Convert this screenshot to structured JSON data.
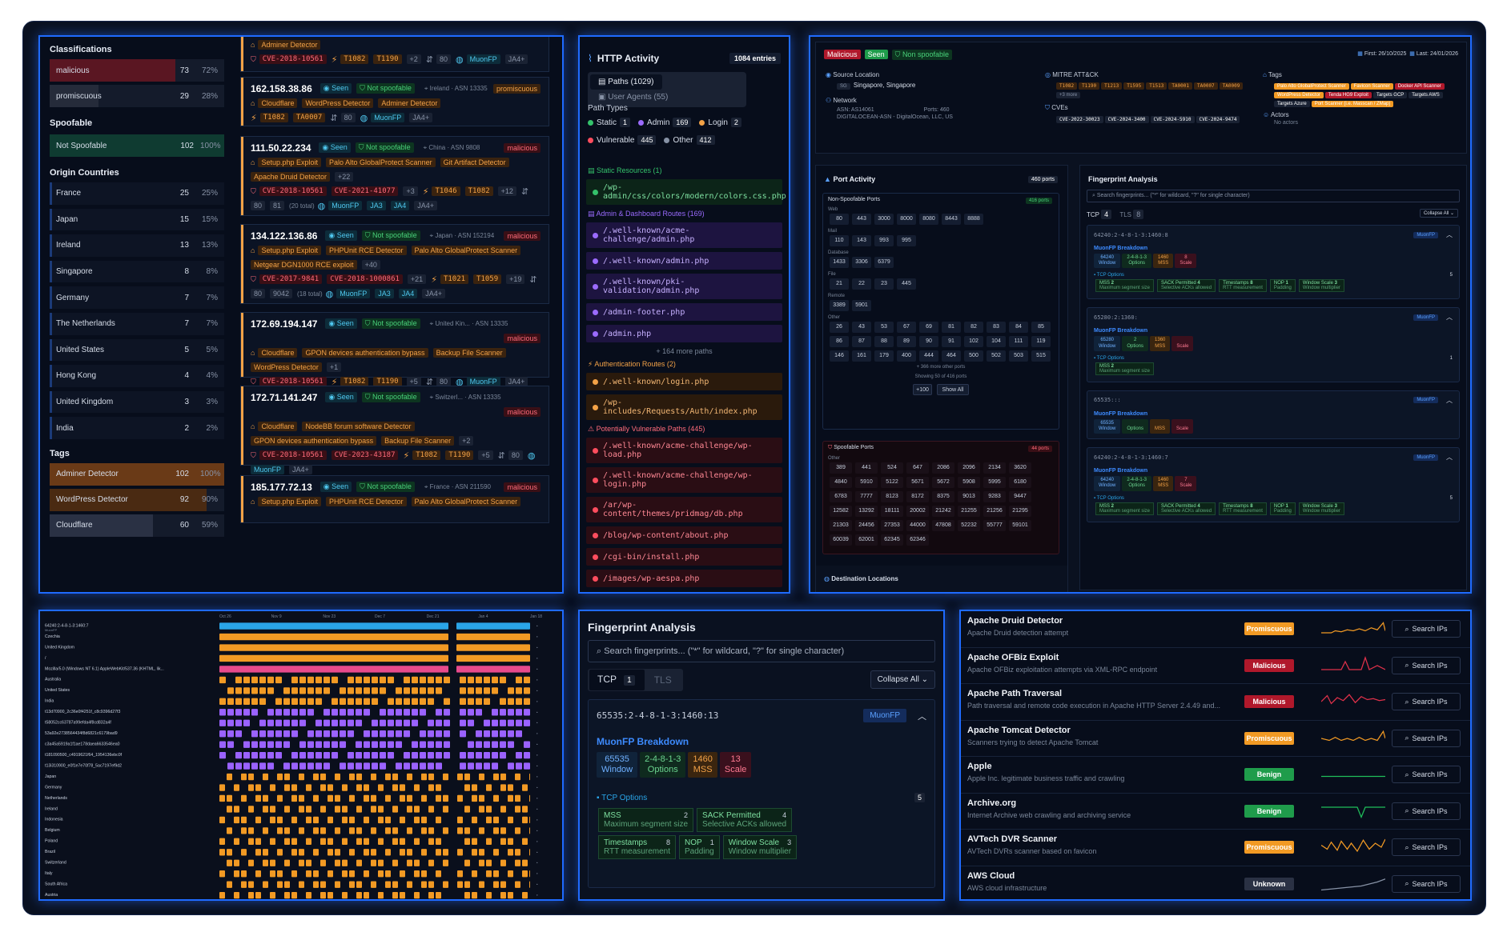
{
  "left": {
    "classifications_title": "Classifications",
    "classifications": [
      {
        "label": "malicious",
        "count": "73",
        "pct": "72%",
        "frac": 0.72
      },
      {
        "label": "promiscuous",
        "count": "29",
        "pct": "28%",
        "frac": 0.28
      }
    ],
    "spoofable_title": "Spoofable",
    "spoofable": {
      "label": "Not Spoofable",
      "count": "102",
      "pct": "100%"
    },
    "countries_title": "Origin Countries",
    "countries": [
      {
        "name": "France",
        "count": "25",
        "pct": "25%"
      },
      {
        "name": "Japan",
        "count": "15",
        "pct": "15%"
      },
      {
        "name": "Ireland",
        "count": "13",
        "pct": "13%"
      },
      {
        "name": "Singapore",
        "count": "8",
        "pct": "8%"
      },
      {
        "name": "Germany",
        "count": "7",
        "pct": "7%"
      },
      {
        "name": "The Netherlands",
        "count": "7",
        "pct": "7%"
      },
      {
        "name": "United States",
        "count": "5",
        "pct": "5%"
      },
      {
        "name": "Hong Kong",
        "count": "4",
        "pct": "4%"
      },
      {
        "name": "United Kingdom",
        "count": "3",
        "pct": "3%"
      },
      {
        "name": "India",
        "count": "2",
        "pct": "2%"
      }
    ],
    "tags_title": "Tags",
    "tags": [
      {
        "label": "Adminer Detector",
        "count": "102",
        "pct": "100%",
        "frac": 1.0
      },
      {
        "label": "WordPress Detector",
        "count": "92",
        "pct": "90%",
        "frac": 0.9
      },
      {
        "label": "Cloudflare",
        "count": "60",
        "pct": "59%",
        "frac": 0.59
      }
    ]
  },
  "cards": [
    {
      "ip": "",
      "loc": "",
      "cls": "",
      "tags": [
        "Adminer Detector"
      ],
      "cves": [
        "CVE-2018-10561"
      ],
      "mitre": [
        "T1082",
        "T1190"
      ],
      "mitre_more": "+2",
      "ports": "80",
      "fp": "MuonFP",
      "ja": "JA4+"
    },
    {
      "ip": "162.158.38.86",
      "seen": "Seen",
      "spoof": "Not spoofable",
      "loc": "Ireland · ASN 13335",
      "cls": "promiscuous",
      "tags": [
        "Cloudflare",
        "WordPress Detector",
        "Adminer Detector"
      ],
      "mitre": [
        "T1082",
        "TA0007"
      ],
      "ports": "80",
      "fp": "MuonFP",
      "ja": "JA4+"
    },
    {
      "ip": "111.50.22.234",
      "seen": "Seen",
      "spoof": "Not spoofable",
      "loc": "China · ASN 9808",
      "cls": "malicious",
      "tags": [
        "Setup.php Exploit",
        "Palo Alto GlobalProtect Scanner",
        "Git Artifact Detector",
        "Apache Druid Detector"
      ],
      "tag_more": "+22",
      "cves": [
        "CVE-2018-10561",
        "CVE-2021-41077"
      ],
      "cve_more": "+3",
      "mitre": [
        "T1046",
        "T1082"
      ],
      "mitre_more": "+12",
      "ports": "80",
      "ports2": "81",
      "ports_total": "(20 total)",
      "fp": "MuonFP",
      "ja": "JA3",
      "ja2": "JA4",
      "ja3": "JA4+"
    },
    {
      "ip": "134.122.136.86",
      "seen": "Seen",
      "spoof": "Not spoofable",
      "loc": "Japan · ASN 152194",
      "cls": "malicious",
      "tags": [
        "Setup.php Exploit",
        "PHPUnit RCE Detector",
        "Palo Alto GlobalProtect Scanner",
        "Netgear DGN1000 RCE exploit"
      ],
      "tag_more": "+40",
      "cves": [
        "CVE-2017-9841",
        "CVE-2018-1000861"
      ],
      "cve_more": "+21",
      "mitre": [
        "T1021",
        "T1059"
      ],
      "mitre_more": "+19",
      "ports": "80",
      "ports2": "9042",
      "ports_total": "(18 total)",
      "fp": "MuonFP",
      "ja": "JA3",
      "ja2": "JA4",
      "ja3": "JA4+"
    },
    {
      "ip": "172.69.194.147",
      "seen": "Seen",
      "spoof": "Not spoofable",
      "loc": "United Kin... · ASN 13335",
      "cls": "malicious",
      "tags": [
        "Cloudflare",
        "GPON devices authentication bypass",
        "Backup File Scanner",
        "WordPress Detector"
      ],
      "tag_more": "+1",
      "cves": [
        "CVE-2018-10561"
      ],
      "mitre": [
        "T1082",
        "T1190"
      ],
      "mitre_more": "+5",
      "ports": "80",
      "fp": "MuonFP",
      "ja": "JA4+"
    },
    {
      "ip": "172.71.141.247",
      "seen": "Seen",
      "spoof": "Not spoofable",
      "loc": "Switzerl... · ASN 13335",
      "cls": "malicious",
      "tags": [
        "Cloudflare",
        "NodeBB forum software Detector",
        "GPON devices authentication bypass",
        "Backup File Scanner"
      ],
      "tag_more": "+2",
      "cves": [
        "CVE-2018-10561",
        "CVE-2023-43187"
      ],
      "mitre": [
        "T1082",
        "T1190"
      ],
      "mitre_more": "+5",
      "ports": "80",
      "fp": "MuonFP",
      "ja": "JA4+"
    },
    {
      "ip": "185.177.72.13",
      "seen": "Seen",
      "spoof": "Not spoofable",
      "loc": "France · ASN 211590",
      "cls": "malicious",
      "tags": [
        "Setup.php Exploit",
        "PHPUnit RCE Detector",
        "Palo Alto GlobalProtect Scanner"
      ]
    }
  ],
  "http": {
    "title": "HTTP Activity",
    "entries": "1084 entries",
    "tab1": "Paths (1029)",
    "tab2": "User Agents (55)",
    "types_title": "Path Types",
    "types": [
      {
        "label": "Static",
        "count": "1",
        "color": "#34c26b"
      },
      {
        "label": "Admin",
        "count": "169",
        "color": "#9b6bff"
      },
      {
        "label": "Login",
        "count": "2",
        "color": "#f3a247"
      },
      {
        "label": "Vulnerable",
        "count": "445",
        "color": "#ff4d5e"
      },
      {
        "label": "Other",
        "count": "412",
        "color": "#8792a6"
      }
    ],
    "static_title": "Static Resources (1)",
    "static": [
      "/wp-admin/css/colors/modern/colors.css.php"
    ],
    "admin_title": "Admin & Dashboard Routes (169)",
    "admin": [
      "/.well-known/acme-challenge/admin.php",
      "/.well-known/admin.php",
      "/.well-known/pki-validation/admin.php",
      "/admin-footer.php",
      "/admin.php"
    ],
    "admin_more": "+ 164 more paths",
    "auth_title": "Authentication Routes (2)",
    "auth": [
      "/.well-known/login.php",
      "/wp-includes/Requests/Auth/index.php"
    ],
    "vuln_title": "Potentially Vulnerable Paths (445)",
    "vuln": [
      "/.well-known/acme-challenge/wp-load.php",
      "/.well-known/acme-challenge/wp-login.php",
      "/ar/wp-content/themes/pridmag/db.php",
      "/blog/wp-content/about.php",
      "/cgi-bin/install.php",
      "/images/wp-aespa.php"
    ]
  },
  "detail": {
    "badges": [
      "Malicious",
      "Seen",
      "Non spoofable"
    ],
    "first": "First: 26/10/2025",
    "last": "Last: 24/01/2026",
    "src_title": "Source Location",
    "src_val": "Singapore, Singapore",
    "src_code": "SG",
    "net_title": "Network",
    "asn": "ASN: AS14061",
    "ports": "Ports: 460",
    "net_org": "DIGITALOCEAN-ASN - DigitalOcean, LLC, US",
    "mitre_title": "MITRE ATT&CK",
    "mitre": [
      "T1082",
      "T1190",
      "T1213",
      "T1595",
      "T1513",
      "TA0001",
      "TA0007",
      "TA0009"
    ],
    "mitre_more": "+3 more",
    "cve_title": "CVEs",
    "cves": [
      "CVE-2022-30023",
      "CVE-2024-3400",
      "CVE-2024-5910",
      "CVE-2024-9474"
    ],
    "tags_title": "Tags",
    "tags": [
      {
        "t": "Palo Alto GlobalProtect Scanner",
        "c": "or"
      },
      {
        "t": "Favicon Scanner",
        "c": "or"
      },
      {
        "t": "Docker API Scanner",
        "c": "red"
      },
      {
        "t": "WordPress Detector",
        "c": "or"
      },
      {
        "t": "Tenda HG9 Exploit",
        "c": "red"
      },
      {
        "t": "Targets GCP",
        "c": "gray"
      },
      {
        "t": "Targets AWS",
        "c": "gray"
      },
      {
        "t": "Targets Azure",
        "c": "gray"
      },
      {
        "t": "Port Scanner (i.e. Masscan / ZMap)",
        "c": "or"
      }
    ],
    "actors_title": "Actors",
    "actors": "No actors"
  },
  "port": {
    "title": "Port Activity",
    "count": "460 ports",
    "ns_title": "Non-Spoofable Ports",
    "ns_count": "416 ports",
    "groups": [
      {
        "name": "Web",
        "ports": [
          "80",
          "443",
          "3000",
          "8000",
          "8080",
          "8443",
          "8888"
        ]
      },
      {
        "name": "Mail",
        "ports": [
          "110",
          "143",
          "993",
          "995"
        ]
      },
      {
        "name": "Database",
        "ports": [
          "1433",
          "3306",
          "6379"
        ]
      },
      {
        "name": "File",
        "ports": [
          "21",
          "22",
          "23",
          "445"
        ]
      },
      {
        "name": "Remote",
        "ports": [
          "3389",
          "5901"
        ]
      },
      {
        "name": "Other",
        "ports": [
          "26",
          "43",
          "53",
          "67",
          "69",
          "81",
          "82",
          "83",
          "84",
          "85",
          "86",
          "87",
          "88",
          "89",
          "90",
          "91",
          "102",
          "104",
          "111",
          "119",
          "146",
          "161",
          "179",
          "400",
          "444",
          "464",
          "500",
          "502",
          "503",
          "515"
        ]
      }
    ],
    "more": "+ 366 more other ports",
    "showing": "Showing 50 of 416 ports",
    "p100": "+100",
    "showall": "Show All",
    "sp_title": "Spoofable Ports",
    "sp_count": "44 ports",
    "sp_group": "Other",
    "sp_ports": [
      "389",
      "441",
      "524",
      "647",
      "2086",
      "2096",
      "2134",
      "3620",
      "4840",
      "5910",
      "5122",
      "5671",
      "5672",
      "5908",
      "5995",
      "6180",
      "6783",
      "7777",
      "8123",
      "8172",
      "8375",
      "9013",
      "9283",
      "9447",
      "12582",
      "13292",
      "18111",
      "20002",
      "21242",
      "21255",
      "21256",
      "21295",
      "21303",
      "24456",
      "27353",
      "44000",
      "47808",
      "52232",
      "55777",
      "59101",
      "60039",
      "62001",
      "62345",
      "62346"
    ],
    "dest": "Destination Locations"
  },
  "fpsmall": {
    "title": "Fingerprint Analysis",
    "search": "Search fingerprints... (\"*\" for wildcard, \"?\" for single character)",
    "tcp": "TCP",
    "tcp_n": "4",
    "tls": "TLS",
    "tls_n": "8",
    "collapse": "Collapse All",
    "items": [
      {
        "hash": "64240:2-4-8-1-3:1460:8",
        "fp": "MuonFP",
        "bd": "MuonFP Breakdown",
        "w": "64240",
        "o": "2-4-8-1-3",
        "m": "1460",
        "s": "8",
        "opts_n": "5",
        "opts": [
          [
            "MSS",
            "Maximum segment size",
            "2"
          ],
          [
            "SACK Permitted",
            "Selective ACKs allowed",
            "4"
          ],
          [
            "Timestamps",
            "RTT measurement",
            "8"
          ],
          [
            "NOP",
            "Padding",
            "1"
          ],
          [
            "Window Scale",
            "Window multiplier",
            "3"
          ]
        ]
      },
      {
        "hash": "65280:2:1360:",
        "fp": "MuonFP",
        "bd": "MuonFP Breakdown",
        "w": "65280",
        "o": "2",
        "m": "1360",
        "s": "",
        "opts_n": "1",
        "opts": [
          [
            "MSS",
            "Maximum segment size",
            "2"
          ]
        ]
      },
      {
        "hash": "65535:::",
        "fp": "MuonFP",
        "bd": "MuonFP Breakdown",
        "w": "65535",
        "o": "",
        "m": "",
        "s": ""
      },
      {
        "hash": "64240:2-4-8-1-3:1460:7",
        "fp": "MuonFP",
        "bd": "MuonFP Breakdown",
        "w": "64240",
        "o": "2-4-8-1-3",
        "m": "1460",
        "s": "7",
        "opts_n": "5",
        "opts": [
          [
            "MSS",
            "Maximum segment size",
            "2"
          ],
          [
            "SACK Permitted",
            "Selective ACKs allowed",
            "4"
          ],
          [
            "Timestamps",
            "RTT measurement",
            "8"
          ],
          [
            "NOP",
            "Padding",
            "1"
          ],
          [
            "Window Scale",
            "Window multiplier",
            "3"
          ]
        ]
      }
    ],
    "labels": {
      "window": "Window",
      "options": "Options",
      "mss": "MSS",
      "scale": "Scale",
      "tcpopt": "TCP Options"
    }
  },
  "fpbig": {
    "title": "Fingerprint Analysis",
    "search": "Search fingerprints... (\"*\" for wildcard, \"?\" for single character)",
    "tcp": "TCP",
    "tcp_n": "1",
    "tls": "TLS",
    "collapse": "Collapse All",
    "hash": "65535:2-4-8-1-3:1460:13",
    "fp": "MuonFP",
    "bd": "MuonFP Breakdown",
    "w": "65535",
    "wl": "Window",
    "o": "2-4-8-1-3",
    "ol": "Options",
    "m": "1460",
    "ml": "MSS",
    "s": "13",
    "sl": "Scale",
    "tcpopt": "TCP Options",
    "opts_n": "5",
    "opts": [
      [
        "MSS",
        "Maximum segment size",
        "2"
      ],
      [
        "SACK Permitted",
        "Selective ACKs allowed",
        "4"
      ],
      [
        "Timestamps",
        "RTT measurement",
        "8"
      ],
      [
        "NOP",
        "Padding",
        "1"
      ],
      [
        "Window Scale",
        "Window multiplier",
        "3"
      ]
    ]
  },
  "signals": [
    {
      "name": "Apache Druid Detector",
      "desc": "Apache Druid detection attempt",
      "badge": "Promiscuous",
      "kind": "prom",
      "btn": "Search IPs"
    },
    {
      "name": "Apache OFBiz Exploit",
      "desc": "Apache OFBiz exploitation attempts via XML-RPC endpoint",
      "badge": "Malicious",
      "kind": "mal",
      "btn": "Search IPs"
    },
    {
      "name": "Apache Path Traversal",
      "desc": "Path traversal and remote code execution in Apache HTTP Server 2.4.49 and...",
      "badge": "Malicious",
      "kind": "mal",
      "btn": "Search IPs"
    },
    {
      "name": "Apache Tomcat Detector",
      "desc": "Scanners trying to detect Apache Tomcat",
      "badge": "Promiscuous",
      "kind": "prom",
      "btn": "Search IPs"
    },
    {
      "name": "Apple",
      "desc": "Apple Inc. legitimate business traffic and crawling",
      "badge": "Benign",
      "kind": "ben",
      "btn": "Search IPs"
    },
    {
      "name": "Archive.org",
      "desc": "Internet Archive web crawling and archiving service",
      "badge": "Benign",
      "kind": "ben",
      "btn": "Search IPs"
    },
    {
      "name": "AVTech DVR Scanner",
      "desc": "AVTech DVRs scanner based on favicon",
      "badge": "Promiscuous",
      "kind": "prom",
      "btn": "Search IPs"
    },
    {
      "name": "AWS Cloud",
      "desc": "AWS cloud infrastructure",
      "badge": "Unknown",
      "kind": "unk",
      "btn": "Search IPs"
    }
  ],
  "timeline": {
    "dates": [
      "Oct 26",
      "Nov 9",
      "Nov 23",
      "Dec 7",
      "Dec 21",
      "Jan 4",
      "Jan 18"
    ],
    "rows": [
      {
        "label": "64240:2-4-8-1-3:1460:7",
        "sub": "MuonFP",
        "kind": "fp",
        "pattern": "solid",
        "color": "#2aa5e8"
      },
      {
        "label": "Czechia",
        "kind": "country",
        "pattern": "solid",
        "color": "#f29a24"
      },
      {
        "label": "United Kingdom",
        "kind": "country",
        "pattern": "solid",
        "color": "#f29a24"
      },
      {
        "label": "/",
        "kind": "path",
        "pattern": "solid",
        "color": "#f29a24"
      },
      {
        "label": "Mozilla/5.0 (Windows NT 6.1) AppleWebKit/537.36 (KHTML, lik...",
        "kind": "ua",
        "pattern": "solid",
        "color": "#e84a8c"
      },
      {
        "label": "Australia",
        "kind": "country",
        "pattern": "dash",
        "color": "#f29a24"
      },
      {
        "label": "United States",
        "kind": "country",
        "pattern": "dash",
        "color": "#f29a24"
      },
      {
        "label": "India",
        "kind": "country",
        "pattern": "dash",
        "color": "#f29a24"
      },
      {
        "label": "t13d70900_2c36e0f4251f_c8c9396d27f3",
        "kind": "hash",
        "pattern": "dash",
        "color": "#9a62ff"
      },
      {
        "label": "t58052cc63787a99efda4f8cd832a4f",
        "kind": "hash",
        "pattern": "dash",
        "color": "#9a62ff"
      },
      {
        "label": "53a92e2738564434f8d6821c6179bad9",
        "kind": "hash",
        "pattern": "dash",
        "color": "#9a62ff"
      },
      {
        "label": "c3a45a5919a1f1ae178daea6633546ea0",
        "kind": "hash",
        "pattern": "dash",
        "color": "#9a62ff"
      },
      {
        "label": "t181090500_c4919621f64_1954136ebc0f",
        "kind": "hash",
        "pattern": "dash",
        "color": "#9a62ff"
      },
      {
        "label": "t13i310900_e0f1e7e70f78_5ac7197ef9d2",
        "kind": "hash",
        "pattern": "dash",
        "color": "#9a62ff"
      },
      {
        "label": "Japan",
        "kind": "country",
        "pattern": "sparse",
        "color": "#f29a24"
      },
      {
        "label": "Germany",
        "kind": "country",
        "pattern": "sparse",
        "color": "#f29a24"
      },
      {
        "label": "Netherlands",
        "kind": "country",
        "pattern": "sparse",
        "color": "#f29a24"
      },
      {
        "label": "Ireland",
        "kind": "country",
        "pattern": "sparse",
        "color": "#f29a24"
      },
      {
        "label": "Indonesia",
        "kind": "country",
        "pattern": "sparse",
        "color": "#f29a24"
      },
      {
        "label": "Belgium",
        "kind": "country",
        "pattern": "sparse",
        "color": "#f29a24"
      },
      {
        "label": "Poland",
        "kind": "country",
        "pattern": "sparse",
        "color": "#f29a24"
      },
      {
        "label": "Brazil",
        "kind": "country",
        "pattern": "sparse",
        "color": "#f29a24"
      },
      {
        "label": "Switzerland",
        "kind": "country",
        "pattern": "sparse",
        "color": "#f29a24"
      },
      {
        "label": "Italy",
        "kind": "country",
        "pattern": "sparse",
        "color": "#f29a24"
      },
      {
        "label": "South Africa",
        "kind": "country",
        "pattern": "sparse",
        "color": "#f29a24"
      },
      {
        "label": "Austria",
        "kind": "country",
        "pattern": "sparse",
        "color": "#f29a24"
      }
    ]
  }
}
